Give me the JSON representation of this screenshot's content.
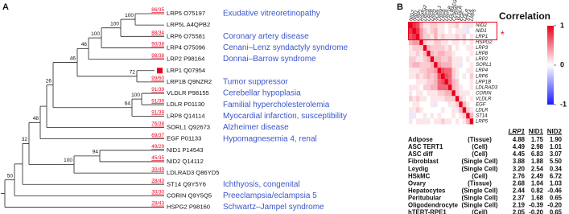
{
  "panel_a": {
    "label": "A",
    "leaves": [
      {
        "name": "LRP5 O75197",
        "ratio": "86/35",
        "disease": "Exudative vitreoretinopathy"
      },
      {
        "name": "LRP5L A4QPB2"
      },
      {
        "name": "LRP6 O75581",
        "ratio": "88/34",
        "disease": "Coronary artery disease"
      },
      {
        "name": "LRP4 O75096",
        "ratio": "90/38",
        "disease": "Cenani–Lenz syndactyly syndrome"
      },
      {
        "name": "LRP2 P98164",
        "ratio": "98/38",
        "disease": "Donnai–Barrow syndrome"
      },
      {
        "name": "LRP1 Q07954"
      },
      {
        "name": "LRP1B Q9NZR2",
        "ratio": "99/60",
        "disease": "Tumor suppressor"
      },
      {
        "name": "VLDLR P98155",
        "ratio": "91/39",
        "disease": "Cerebellar hypoplasia"
      },
      {
        "name": "LDLR P01130",
        "ratio": "91/39",
        "disease": "Familial hypercholesterolemia"
      },
      {
        "name": "LRP8 Q14114",
        "ratio": "91/39",
        "disease": "Myocardial infarction, susceptibility"
      },
      {
        "name": "SORL1 Q92673",
        "ratio": "76/38",
        "disease": "Alzheimer disease"
      },
      {
        "name": "EGF P01133",
        "ratio": "69/37",
        "disease": "Hypomagnesemia 4, renal"
      },
      {
        "name": "NID1 P14543",
        "ratio": "49/29"
      },
      {
        "name": "NID2 Q14112",
        "ratio": "45/35"
      },
      {
        "name": "LDLRAD3 Q86YD5",
        "ratio": "30/49"
      },
      {
        "name": "ST14 Q9Y5Y6",
        "ratio": "28/43",
        "disease": "Ichthyosis, congenital"
      },
      {
        "name": "CORIN Q9Y5Q5",
        "ratio": "30/30",
        "disease": "Preeclampsia/eclampsia 5"
      },
      {
        "name": "HSPG2 P98160",
        "ratio": "28/43",
        "disease": "Schwartz–Jampel syndrome"
      }
    ],
    "bootstrap": [
      100,
      100,
      100,
      46,
      72,
      46,
      100,
      64,
      26,
      48,
      94,
      100,
      32,
      50
    ]
  },
  "panel_b": {
    "label": "B",
    "title": "Correlation",
    "marker": "*",
    "genes": [
      "NID2",
      "NID1",
      "LRP1",
      "HSPG2",
      "LRP3",
      "LRP8",
      "LRP2",
      "SORL1",
      "LRP4",
      "LRP6",
      "LRP1B",
      "LDLRAD3",
      "CORIN",
      "VLDLR",
      "EGF",
      "LDLR",
      "ST14",
      "LRP5"
    ],
    "matrix": [
      [
        1,
        0.8,
        0.7,
        0.3,
        0.1,
        0.1,
        0.2,
        0.2,
        0.1,
        0.1,
        0.0,
        0.1,
        0.1,
        0.2,
        0.0,
        0.1,
        -0.1,
        0.1
      ],
      [
        0.8,
        1,
        0.8,
        0.4,
        0.2,
        0.1,
        0.2,
        0.3,
        0.1,
        0.1,
        0.0,
        0.1,
        0.0,
        0.1,
        0.1,
        0.1,
        -0.1,
        0.0
      ],
      [
        0.7,
        0.8,
        1,
        0.4,
        0.2,
        0.2,
        0.1,
        0.3,
        0.1,
        0.2,
        0.1,
        0.1,
        0.1,
        0.2,
        0.1,
        0.2,
        0.0,
        0.1
      ],
      [
        0.3,
        0.4,
        0.4,
        1,
        0.2,
        0.1,
        0.1,
        0.2,
        0.2,
        0.1,
        0.1,
        0.0,
        0.1,
        0.1,
        0.0,
        0.1,
        0.0,
        0.1
      ],
      [
        0.1,
        0.2,
        0.2,
        0.2,
        1,
        0.3,
        0.2,
        0.2,
        0.2,
        0.2,
        0.1,
        0.2,
        0.0,
        0.1,
        0.0,
        0.0,
        0.1,
        0.1
      ],
      [
        0.1,
        0.1,
        0.2,
        0.1,
        0.3,
        1,
        0.3,
        0.2,
        0.3,
        0.3,
        0.2,
        0.2,
        0.1,
        0.0,
        0.0,
        0.0,
        0.0,
        0.1
      ],
      [
        0.2,
        0.2,
        0.1,
        0.1,
        0.2,
        0.3,
        1,
        0.3,
        0.3,
        0.2,
        0.2,
        0.3,
        0.1,
        0.1,
        0.1,
        0.0,
        0.1,
        0.0
      ],
      [
        0.2,
        0.3,
        0.3,
        0.2,
        0.2,
        0.2,
        0.3,
        1,
        0.4,
        0.3,
        0.3,
        0.3,
        0.1,
        0.1,
        -0.1,
        0.0,
        0.0,
        0.1
      ],
      [
        0.1,
        0.1,
        0.1,
        0.2,
        0.2,
        0.3,
        0.3,
        0.4,
        1,
        0.7,
        0.6,
        0.6,
        0.2,
        0.1,
        0.0,
        0.0,
        0.1,
        0.1
      ],
      [
        0.1,
        0.1,
        0.2,
        0.1,
        0.2,
        0.3,
        0.2,
        0.3,
        0.7,
        1,
        0.7,
        0.6,
        0.2,
        0.1,
        0.0,
        0.1,
        0.0,
        0.2
      ],
      [
        0.0,
        0.0,
        0.1,
        0.1,
        0.1,
        0.2,
        0.2,
        0.3,
        0.6,
        0.7,
        1,
        0.6,
        0.3,
        0.2,
        0.0,
        0.0,
        0.0,
        0.1
      ],
      [
        0.1,
        0.1,
        0.1,
        0.0,
        0.2,
        0.2,
        0.3,
        0.3,
        0.6,
        0.6,
        0.6,
        1,
        0.3,
        0.2,
        0.1,
        0.0,
        0.0,
        0.1
      ],
      [
        0.1,
        0.0,
        0.1,
        0.1,
        0.0,
        0.1,
        0.1,
        0.1,
        0.2,
        0.2,
        0.3,
        0.3,
        1,
        0.2,
        0.1,
        0.1,
        0.1,
        0.0
      ],
      [
        0.2,
        0.1,
        0.2,
        0.1,
        0.1,
        0.0,
        0.1,
        0.1,
        0.1,
        0.1,
        0.2,
        0.2,
        0.2,
        1,
        0.2,
        0.1,
        0.0,
        0.1
      ],
      [
        0.0,
        0.1,
        0.1,
        0.0,
        0.0,
        0.0,
        0.1,
        -0.1,
        0.0,
        0.0,
        0.0,
        0.1,
        0.1,
        0.2,
        1,
        0.3,
        0.1,
        0.0
      ],
      [
        0.1,
        0.1,
        0.2,
        0.1,
        0.0,
        0.0,
        0.0,
        0.0,
        0.0,
        0.1,
        0.0,
        0.0,
        0.1,
        0.1,
        0.3,
        1,
        0.2,
        0.1
      ],
      [
        -0.1,
        -0.1,
        0.0,
        0.0,
        0.1,
        0.0,
        0.1,
        0.0,
        0.1,
        0.0,
        0.0,
        0.0,
        0.1,
        0.0,
        0.1,
        0.2,
        1,
        0.3
      ],
      [
        0.1,
        0.0,
        0.1,
        0.1,
        0.1,
        0.1,
        0.0,
        0.1,
        0.1,
        0.2,
        0.1,
        0.1,
        0.0,
        0.1,
        0.0,
        0.1,
        0.3,
        1
      ]
    ],
    "colorbar": {
      "lim": [
        -1,
        1
      ],
      "ticks": [
        1,
        0,
        -1
      ]
    },
    "table": {
      "header": [
        "LRP1",
        "NID1",
        "NID2"
      ],
      "rows": [
        {
          "tissue": "Adipose",
          "type": "(Tissue)",
          "values": [
            "4.88",
            "1.75",
            "1.90"
          ]
        },
        {
          "tissue": "ASC TERT1",
          "type": "(Cell)",
          "values": [
            "4.49",
            "2.98",
            "1.01"
          ]
        },
        {
          "tissue": "ASC diff",
          "type": "(Cell)",
          "values": [
            "4.45",
            "6.83",
            "3.07"
          ]
        },
        {
          "tissue": "Fibroblast",
          "type": "(Single Cell)",
          "values": [
            "3.88",
            "1.88",
            "5.50"
          ]
        },
        {
          "tissue": "Leydig",
          "type": "(Single Cell)",
          "values": [
            "3.20",
            "2.54",
            "0.34"
          ]
        },
        {
          "tissue": "HSkMC",
          "type": "(Cell)",
          "values": [
            "2.76",
            "2.49",
            "6.72"
          ]
        },
        {
          "tissue": "Ovary",
          "type": "(Tissue)",
          "values": [
            "2.68",
            "1.04",
            "1.03"
          ]
        },
        {
          "tissue": "Hepatocytes",
          "type": "(Single Cell)",
          "values": [
            "2.44",
            "0.82",
            "-0.46"
          ]
        },
        {
          "tissue": "Peritubular",
          "type": "(Single Cell)",
          "values": [
            "2.37",
            "1.68",
            "0.65"
          ]
        },
        {
          "tissue": "Oligodendrocyte",
          "type": "(Single Cell)",
          "values": [
            "2.19",
            "-0.39",
            "-0.20"
          ]
        },
        {
          "tissue": "hTERT-RPE1",
          "type": "(Cell)",
          "values": [
            "2.05",
            "-0.20",
            "0.65"
          ]
        }
      ]
    }
  }
}
